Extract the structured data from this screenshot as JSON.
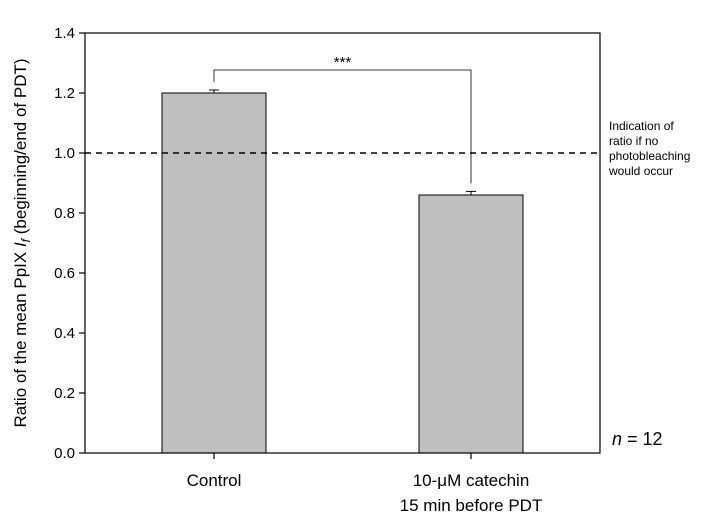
{
  "chart_data": {
    "type": "bar",
    "categories": [
      [
        "Control"
      ],
      [
        "10-μM catechin",
        "15 min before PDT"
      ]
    ],
    "values": [
      1.2,
      0.86
    ],
    "errors": [
      0.01,
      0.012
    ],
    "bar_color": "#bfbfbf",
    "ylabel_prefix": "Ratio of the mean PpIX ",
    "ylabel_symbol": "I",
    "ylabel_subscript": "f",
    "ylabel_suffix": " (beginning/end of PDT)",
    "ylim": [
      0,
      1.4
    ],
    "yticks": [
      "0.0",
      "0.2",
      "0.4",
      "0.6",
      "0.8",
      "1.0",
      "1.2",
      "1.4"
    ],
    "reference_line": {
      "value": 1.0,
      "style": "dashed",
      "annotation": [
        "Indication of",
        "ratio if no",
        "photobleaching",
        "would occur"
      ]
    },
    "significance": {
      "label": "***",
      "between": [
        0,
        1
      ]
    },
    "sample_size": {
      "symbol": "n",
      "text": " = 12"
    },
    "grid": false
  }
}
